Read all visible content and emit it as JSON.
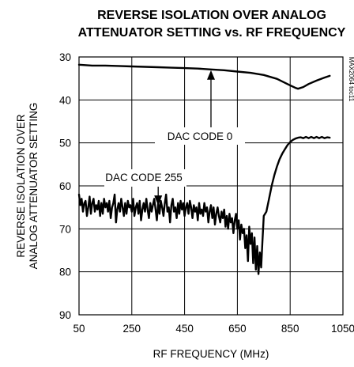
{
  "chart_data": {
    "type": "line",
    "title": [
      "REVERSE ISOLATION OVER ANALOG",
      "ATTENUATOR SETTING vs. RF FREQUENCY"
    ],
    "xlabel": "RF FREQUENCY (MHz)",
    "ylabel": [
      "REVERSE ISOLATION OVER",
      "ANALOG ATTENUATOR SETTING"
    ],
    "xlim": [
      50,
      1050
    ],
    "ylim": [
      30,
      90
    ],
    "y_inverted": true,
    "grid": true,
    "x_ticks": [
      "50",
      "250",
      "450",
      "650",
      "850",
      "1050"
    ],
    "y_ticks": [
      "30",
      "40",
      "50",
      "60",
      "70",
      "80",
      "90"
    ],
    "side_id": "MAX2064 toc11",
    "annotations": [
      {
        "text": "DAC CODE 0",
        "arrow_x": 550,
        "arrow_y": 32.9
      },
      {
        "text": "DAC CODE 255",
        "arrow_x": 350,
        "arrow_y": 65.0
      }
    ],
    "series": [
      {
        "name": "DAC CODE 0",
        "x": [
          50,
          100,
          150,
          200,
          250,
          300,
          350,
          400,
          450,
          500,
          550,
          600,
          650,
          700,
          750,
          800,
          850,
          870,
          880,
          900,
          920,
          950,
          980,
          1000
        ],
        "y": [
          31.8,
          32.0,
          32.0,
          32.1,
          32.2,
          32.3,
          32.4,
          32.5,
          32.6,
          32.7,
          32.9,
          33.1,
          33.4,
          33.7,
          34.2,
          35.1,
          36.6,
          37.2,
          37.4,
          37.0,
          36.3,
          35.5,
          34.8,
          34.4
        ]
      },
      {
        "name": "DAC CODE 255",
        "x": [
          50,
          55,
          60,
          65,
          70,
          75,
          80,
          85,
          90,
          95,
          100,
          105,
          110,
          115,
          120,
          125,
          130,
          135,
          140,
          145,
          150,
          155,
          160,
          165,
          170,
          175,
          180,
          185,
          190,
          195,
          200,
          205,
          210,
          215,
          220,
          225,
          230,
          235,
          240,
          245,
          250,
          255,
          260,
          265,
          270,
          275,
          280,
          285,
          290,
          295,
          300,
          305,
          310,
          315,
          320,
          325,
          330,
          335,
          340,
          345,
          350,
          355,
          360,
          365,
          370,
          375,
          380,
          385,
          390,
          395,
          400,
          405,
          410,
          415,
          420,
          425,
          430,
          435,
          440,
          445,
          450,
          455,
          460,
          465,
          470,
          475,
          480,
          485,
          490,
          495,
          500,
          505,
          510,
          515,
          520,
          525,
          530,
          535,
          540,
          545,
          550,
          555,
          560,
          565,
          570,
          575,
          580,
          585,
          590,
          595,
          600,
          605,
          610,
          615,
          620,
          625,
          630,
          635,
          640,
          645,
          650,
          655,
          660,
          665,
          670,
          675,
          680,
          685,
          690,
          695,
          700,
          705,
          710,
          715,
          720,
          725,
          730,
          735,
          740,
          745,
          750,
          760,
          770,
          780,
          790,
          800,
          810,
          820,
          830,
          840,
          850,
          860,
          870,
          880,
          890,
          900,
          910,
          920,
          930,
          940,
          950,
          960,
          970,
          980,
          990,
          1000
        ],
        "y": [
          62.0,
          64.5,
          63.0,
          66.0,
          64.0,
          63.5,
          67.0,
          65.0,
          62.5,
          66.5,
          64.0,
          63.0,
          66.0,
          64.5,
          65.5,
          63.5,
          67.0,
          64.0,
          66.5,
          63.0,
          65.0,
          64.0,
          66.0,
          63.5,
          67.5,
          65.0,
          64.0,
          62.0,
          68.5,
          65.5,
          64.0,
          66.0,
          63.0,
          65.0,
          67.0,
          64.0,
          66.5,
          63.5,
          65.0,
          64.5,
          66.0,
          63.0,
          67.0,
          65.0,
          64.0,
          66.5,
          63.5,
          68.0,
          65.5,
          64.0,
          66.0,
          63.0,
          65.5,
          67.5,
          64.0,
          66.0,
          64.5,
          63.0,
          65.5,
          68.0,
          64.0,
          66.5,
          63.5,
          65.0,
          67.0,
          64.0,
          62.0,
          66.0,
          65.0,
          68.5,
          64.5,
          63.0,
          66.0,
          65.0,
          67.5,
          64.0,
          66.5,
          63.5,
          65.5,
          64.0,
          67.0,
          65.0,
          64.0,
          66.5,
          63.5,
          65.0,
          67.5,
          64.5,
          66.0,
          65.0,
          68.0,
          64.0,
          66.5,
          65.5,
          67.0,
          64.0,
          66.0,
          65.0,
          68.5,
          66.0,
          64.5,
          67.5,
          65.0,
          69.0,
          66.5,
          65.0,
          67.0,
          68.5,
          66.0,
          67.5,
          65.5,
          69.5,
          67.0,
          70.0,
          66.5,
          68.5,
          67.5,
          71.0,
          68.0,
          66.5,
          70.0,
          68.0,
          72.5,
          69.0,
          71.0,
          70.0,
          74.5,
          71.5,
          77.5,
          69.5,
          73.5,
          71.0,
          78.0,
          72.0,
          79.5,
          74.0,
          80.5,
          75.5,
          79.0,
          73.0,
          67.0,
          66.0,
          63.0,
          60.0,
          57.5,
          55.5,
          53.8,
          52.5,
          51.5,
          50.5,
          49.8,
          49.3,
          49.0,
          48.8,
          48.7,
          48.9,
          48.6,
          48.9,
          48.6,
          48.9,
          48.6,
          48.9,
          48.6,
          48.9,
          48.7,
          48.8
        ]
      }
    ]
  }
}
